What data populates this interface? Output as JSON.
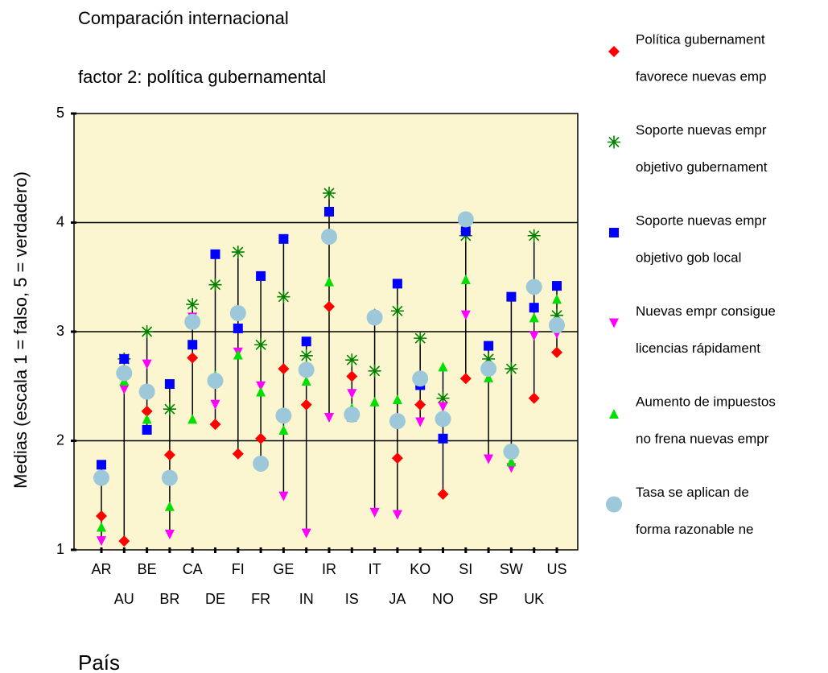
{
  "chart_data": {
    "type": "hilo",
    "title": "Comparación internacional",
    "subtitle": "factor 2: política gubernamental",
    "y_label": "Medias (escala 1 = falso, 5 = verdadero)",
    "x_label": "País",
    "categories": [
      "AR",
      "AU",
      "BE",
      "BR",
      "CA",
      "DE",
      "FI",
      "FR",
      "GE",
      "IN",
      "IR",
      "IS",
      "IT",
      "JA",
      "KO",
      "NO",
      "SI",
      "SP",
      "SW",
      "UK",
      "US"
    ],
    "ylim": [
      1,
      5
    ],
    "yticks": [
      1,
      2,
      3,
      4,
      5
    ],
    "grid_values": [
      2,
      3,
      4
    ],
    "series": [
      {
        "name": [
          "Política gubernament",
          "favorece nuevas emp"
        ],
        "color": "#ff0000",
        "marker": "diamond",
        "values": [
          1.31,
          1.08,
          2.27,
          1.87,
          2.76,
          2.15,
          1.88,
          2.02,
          2.66,
          2.33,
          3.23,
          2.59,
          3.16,
          1.84,
          2.33,
          1.51,
          2.57,
          2.68,
          1.91,
          2.39,
          2.81
        ]
      },
      {
        "name": [
          "Soporte nuevas empr",
          "objetivo gubernament"
        ],
        "color": "#008000",
        "marker": "star",
        "values": [
          1.66,
          2.75,
          3.0,
          2.29,
          3.25,
          3.43,
          3.73,
          2.88,
          3.32,
          2.78,
          4.27,
          2.74,
          2.64,
          3.19,
          2.94,
          2.39,
          3.88,
          2.75,
          2.66,
          3.88,
          3.15
        ]
      },
      {
        "name": [
          "Soporte nuevas empr",
          "objetivo gob local"
        ],
        "color": "#0000ff",
        "marker": "square",
        "values": [
          1.78,
          2.75,
          2.1,
          2.52,
          2.88,
          3.71,
          3.03,
          3.51,
          3.85,
          2.91,
          4.1,
          2.22,
          3.12,
          3.44,
          2.51,
          2.02,
          3.92,
          2.87,
          3.32,
          3.22,
          3.42
        ]
      },
      {
        "name": [
          "Nuevas empr consigue",
          "licencias rápidament"
        ],
        "color": "#ff00ff",
        "marker": "tri-down",
        "values": [
          1.08,
          2.47,
          2.7,
          1.14,
          3.13,
          2.33,
          2.81,
          2.5,
          1.49,
          1.15,
          2.21,
          2.43,
          1.34,
          1.32,
          2.17,
          2.31,
          3.15,
          1.83,
          1.75,
          2.96,
          2.98
        ]
      },
      {
        "name": [
          "Aumento de impuestos",
          "no frena nuevas empr"
        ],
        "color": "#00e000",
        "marker": "tri-up",
        "values": [
          1.21,
          2.55,
          2.2,
          1.4,
          2.2,
          2.6,
          2.79,
          2.45,
          2.1,
          2.55,
          3.46,
          2.3,
          2.36,
          2.38,
          2.58,
          2.68,
          3.48,
          2.58,
          1.81,
          3.13,
          3.3
        ]
      },
      {
        "name": [
          "Tasa se aplican de",
          "forma razonable ne"
        ],
        "color": "#9cc8da",
        "marker": "circle",
        "values": [
          1.66,
          2.62,
          2.45,
          1.66,
          3.09,
          2.55,
          3.17,
          1.79,
          2.23,
          2.65,
          3.87,
          2.24,
          3.13,
          2.18,
          2.57,
          2.2,
          4.03,
          2.66,
          1.9,
          3.41,
          3.06
        ]
      }
    ]
  }
}
